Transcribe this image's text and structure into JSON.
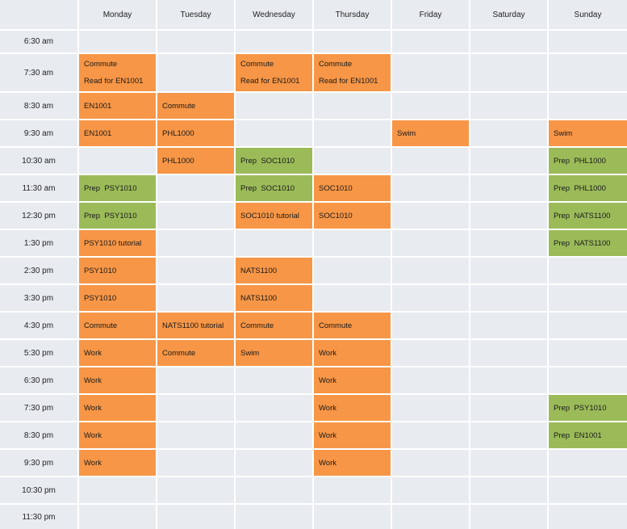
{
  "days": [
    "Monday",
    "Tuesday",
    "Wednesday",
    "Thursday",
    "Friday",
    "Saturday",
    "Sunday"
  ],
  "times": [
    "6:30 am",
    "7:30 am",
    "8:30 am",
    "9:30 am",
    "10:30 am",
    "11:30 am",
    "12:30 pm",
    "1:30 pm",
    "2:30 pm",
    "3:30 pm",
    "4:30 pm",
    "5:30 pm",
    "6:30 pm",
    "7:30 pm",
    "8:30 pm",
    "9:30 pm",
    "10:30 pm",
    "11:30 pm"
  ],
  "colors": {
    "orange": "#f79646",
    "green": "#9bbb59",
    "empty": "#e8ebf0"
  },
  "events": [
    {
      "day": 0,
      "slot": 1,
      "color": "orange",
      "lines": [
        "Commute",
        "Read for EN1001"
      ]
    },
    {
      "day": 2,
      "slot": 1,
      "color": "orange",
      "lines": [
        "Commute",
        "Read for EN1001"
      ]
    },
    {
      "day": 3,
      "slot": 1,
      "color": "orange",
      "lines": [
        "Commute",
        "Read for EN1001"
      ]
    },
    {
      "day": 0,
      "slot": 2,
      "color": "orange",
      "lines": [
        "EN1001"
      ]
    },
    {
      "day": 1,
      "slot": 2,
      "color": "orange",
      "lines": [
        "Commute"
      ]
    },
    {
      "day": 0,
      "slot": 3,
      "color": "orange",
      "lines": [
        "EN1001"
      ]
    },
    {
      "day": 1,
      "slot": 3,
      "color": "orange",
      "lines": [
        "PHL1000"
      ]
    },
    {
      "day": 4,
      "slot": 3,
      "color": "orange",
      "lines": [
        "Swim"
      ]
    },
    {
      "day": 6,
      "slot": 3,
      "color": "orange",
      "lines": [
        "Swim"
      ]
    },
    {
      "day": 1,
      "slot": 4,
      "color": "orange",
      "lines": [
        "PHL1000"
      ]
    },
    {
      "day": 2,
      "slot": 4,
      "color": "green",
      "lines": [
        "Prep  SOC1010"
      ]
    },
    {
      "day": 6,
      "slot": 4,
      "color": "green",
      "lines": [
        "Prep  PHL1000"
      ]
    },
    {
      "day": 0,
      "slot": 5,
      "color": "green",
      "lines": [
        "Prep  PSY1010"
      ]
    },
    {
      "day": 2,
      "slot": 5,
      "color": "green",
      "lines": [
        "Prep  SOC1010"
      ]
    },
    {
      "day": 3,
      "slot": 5,
      "color": "orange",
      "lines": [
        "SOC1010"
      ]
    },
    {
      "day": 6,
      "slot": 5,
      "color": "green",
      "lines": [
        "Prep  PHL1000"
      ]
    },
    {
      "day": 0,
      "slot": 6,
      "color": "green",
      "lines": [
        "Prep  PSY1010"
      ]
    },
    {
      "day": 2,
      "slot": 6,
      "color": "orange",
      "lines": [
        "SOC1010 tutorial"
      ]
    },
    {
      "day": 3,
      "slot": 6,
      "color": "orange",
      "lines": [
        "SOC1010"
      ]
    },
    {
      "day": 6,
      "slot": 6,
      "color": "green",
      "lines": [
        "Prep  NATS1100"
      ]
    },
    {
      "day": 0,
      "slot": 7,
      "color": "orange",
      "lines": [
        "PSY1010 tutorial"
      ]
    },
    {
      "day": 6,
      "slot": 7,
      "color": "green",
      "lines": [
        "Prep  NATS1100"
      ]
    },
    {
      "day": 0,
      "slot": 8,
      "color": "orange",
      "lines": [
        "PSY1010"
      ]
    },
    {
      "day": 2,
      "slot": 8,
      "color": "orange",
      "lines": [
        "NATS1100"
      ]
    },
    {
      "day": 0,
      "slot": 9,
      "color": "orange",
      "lines": [
        "PSY1010"
      ]
    },
    {
      "day": 2,
      "slot": 9,
      "color": "orange",
      "lines": [
        "NATS1100"
      ]
    },
    {
      "day": 0,
      "slot": 10,
      "color": "orange",
      "lines": [
        "Commute"
      ]
    },
    {
      "day": 1,
      "slot": 10,
      "color": "orange",
      "lines": [
        "NATS1100 tutorial"
      ]
    },
    {
      "day": 2,
      "slot": 10,
      "color": "orange",
      "lines": [
        "Commute"
      ]
    },
    {
      "day": 3,
      "slot": 10,
      "color": "orange",
      "lines": [
        "Commute"
      ]
    },
    {
      "day": 0,
      "slot": 11,
      "color": "orange",
      "lines": [
        "Work"
      ]
    },
    {
      "day": 1,
      "slot": 11,
      "color": "orange",
      "lines": [
        "Commute"
      ]
    },
    {
      "day": 2,
      "slot": 11,
      "color": "orange",
      "lines": [
        "Swim"
      ]
    },
    {
      "day": 3,
      "slot": 11,
      "color": "orange",
      "lines": [
        "Work"
      ]
    },
    {
      "day": 0,
      "slot": 12,
      "color": "orange",
      "lines": [
        "Work"
      ]
    },
    {
      "day": 3,
      "slot": 12,
      "color": "orange",
      "lines": [
        "Work"
      ]
    },
    {
      "day": 0,
      "slot": 13,
      "color": "orange",
      "lines": [
        "Work"
      ]
    },
    {
      "day": 3,
      "slot": 13,
      "color": "orange",
      "lines": [
        "Work"
      ]
    },
    {
      "day": 6,
      "slot": 13,
      "color": "green",
      "lines": [
        "Prep  PSY1010"
      ]
    },
    {
      "day": 0,
      "slot": 14,
      "color": "orange",
      "lines": [
        "Work"
      ]
    },
    {
      "day": 3,
      "slot": 14,
      "color": "orange",
      "lines": [
        "Work"
      ]
    },
    {
      "day": 6,
      "slot": 14,
      "color": "green",
      "lines": [
        "Prep  EN1001"
      ]
    },
    {
      "day": 0,
      "slot": 15,
      "color": "orange",
      "lines": [
        "Work"
      ]
    },
    {
      "day": 3,
      "slot": 15,
      "color": "orange",
      "lines": [
        "Work"
      ]
    }
  ]
}
